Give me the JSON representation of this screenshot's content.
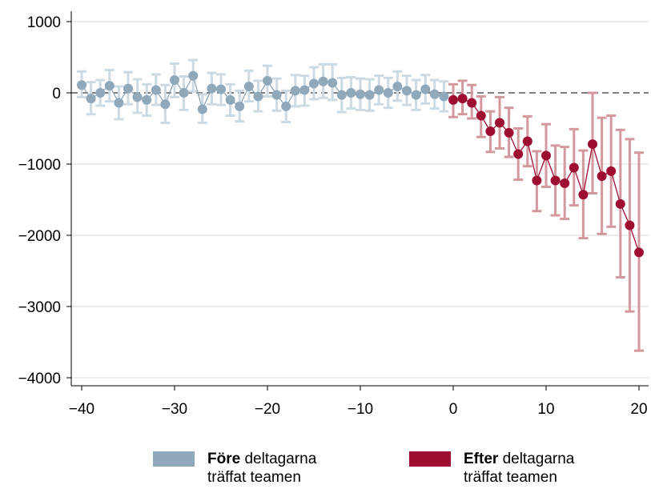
{
  "chart_data": {
    "type": "scatter",
    "title": "",
    "xlabel": "",
    "ylabel": "",
    "xlim": [
      -41,
      21
    ],
    "ylim": [
      -4000,
      1000
    ],
    "xticks": [
      -40,
      -30,
      -20,
      -10,
      0,
      10,
      20
    ],
    "yticks": [
      1000,
      0,
      -1000,
      -2000,
      -3000,
      -4000
    ],
    "xtick_labels": [
      "−40",
      "−30",
      "−20",
      "−10",
      "0",
      "10",
      "20"
    ],
    "ytick_labels": [
      "1000",
      "0",
      "−1000",
      "−2000",
      "−3000",
      "−4000"
    ],
    "reference_line": {
      "y": 0,
      "style": "dashed"
    },
    "grid": "horizontal",
    "legend_position": "bottom",
    "series": [
      {
        "name_bold": "Före",
        "name_rest_1": "deltagarna",
        "name_rest_2": "träffat teamen",
        "color": "#8FA8BA",
        "error_color": "#CCDAE3",
        "x": [
          -40,
          -39,
          -38,
          -37,
          -36,
          -35,
          -34,
          -33,
          -32,
          -31,
          -30,
          -29,
          -28,
          -27,
          -26,
          -25,
          -24,
          -23,
          -22,
          -21,
          -20,
          -19,
          -18,
          -17,
          -16,
          -15,
          -14,
          -13,
          -12,
          -11,
          -10,
          -9,
          -8,
          -7,
          -6,
          -5,
          -4,
          -3,
          -2,
          -1
        ],
        "y": [
          110,
          -80,
          0,
          100,
          -140,
          60,
          -60,
          -100,
          40,
          -160,
          180,
          0,
          240,
          -230,
          60,
          50,
          -100,
          -190,
          90,
          -50,
          170,
          -30,
          -190,
          30,
          40,
          130,
          160,
          140,
          -30,
          0,
          -20,
          -30,
          40,
          0,
          90,
          30,
          -30,
          50,
          -20,
          -50
        ],
        "lower": [
          -60,
          -300,
          -180,
          -120,
          -370,
          -160,
          -280,
          -320,
          -170,
          -420,
          -60,
          -240,
          20,
          -420,
          -160,
          -170,
          -320,
          -400,
          -120,
          -260,
          -50,
          -250,
          -410,
          -190,
          -180,
          -90,
          -70,
          -100,
          -270,
          -220,
          -240,
          -250,
          -160,
          -210,
          -110,
          -170,
          -240,
          -150,
          -220,
          -260
        ],
        "upper": [
          300,
          150,
          180,
          320,
          90,
          290,
          190,
          120,
          260,
          110,
          410,
          230,
          460,
          -20,
          280,
          260,
          120,
          30,
          310,
          170,
          380,
          200,
          30,
          250,
          240,
          360,
          400,
          400,
          210,
          220,
          200,
          190,
          240,
          210,
          300,
          240,
          180,
          250,
          180,
          160
        ]
      },
      {
        "name_bold": "Efter",
        "name_rest_1": "deltagarna",
        "name_rest_2": "träffat teamen",
        "color": "#9E0E33",
        "error_color": "#D4999F",
        "x": [
          0,
          1,
          2,
          3,
          4,
          5,
          6,
          7,
          8,
          9,
          10,
          11,
          12,
          13,
          14,
          15,
          16,
          17,
          18,
          19,
          20
        ],
        "y": [
          -100,
          -80,
          -140,
          -320,
          -540,
          -420,
          -560,
          -860,
          -680,
          -1230,
          -880,
          -1230,
          -1270,
          -1050,
          -1430,
          -720,
          -1170,
          -1100,
          -1560,
          -1860,
          -2240
        ],
        "lower": [
          -340,
          -300,
          -360,
          -620,
          -830,
          -780,
          -900,
          -1220,
          -1030,
          -1660,
          -1320,
          -1720,
          -1770,
          -1580,
          -2040,
          -1410,
          -1980,
          -1880,
          -2590,
          -3070,
          -3620
        ],
        "upper": [
          120,
          170,
          110,
          -50,
          -260,
          -60,
          -210,
          -500,
          -330,
          -820,
          -440,
          -740,
          -760,
          -510,
          -810,
          0,
          -350,
          -320,
          -520,
          -650,
          -840
        ]
      }
    ]
  }
}
